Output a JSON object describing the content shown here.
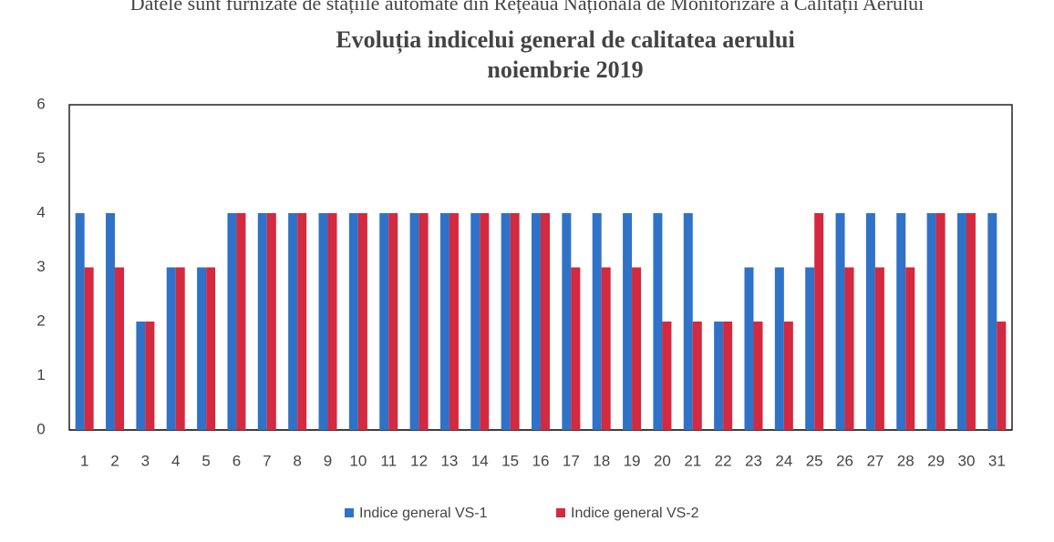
{
  "header_text": "Datele sunt furnizate de stațiile automate din Rețeaua Națională de Monitorizare a Calității Aerului",
  "chart_data": {
    "type": "bar",
    "title": "Evoluția indicelui general de calitatea aerului",
    "subtitle": "noiembrie 2019",
    "categories": [
      "1",
      "2",
      "3",
      "4",
      "5",
      "6",
      "7",
      "8",
      "9",
      "10",
      "11",
      "12",
      "13",
      "14",
      "15",
      "16",
      "17",
      "18",
      "19",
      "20",
      "21",
      "22",
      "23",
      "24",
      "25",
      "26",
      "27",
      "28",
      "29",
      "30",
      "31"
    ],
    "series": [
      {
        "name": "Indice general VS-1",
        "color": "#2f72c8",
        "values": [
          4,
          4,
          2,
          3,
          3,
          4,
          4,
          4,
          4,
          4,
          4,
          4,
          4,
          4,
          4,
          4,
          4,
          4,
          4,
          4,
          4,
          2,
          3,
          3,
          3,
          4,
          4,
          4,
          4,
          4,
          4
        ]
      },
      {
        "name": "Indice general VS-2",
        "color": "#d4293f",
        "values": [
          3,
          3,
          2,
          3,
          3,
          4,
          4,
          4,
          4,
          4,
          4,
          4,
          4,
          4,
          4,
          4,
          3,
          3,
          3,
          2,
          2,
          2,
          2,
          2,
          4,
          3,
          3,
          3,
          4,
          4,
          2
        ]
      }
    ],
    "ylim": [
      0,
      6
    ],
    "yticks": [
      0,
      1,
      2,
      3,
      4,
      5,
      6
    ],
    "grid": false,
    "legend": "bottom"
  }
}
